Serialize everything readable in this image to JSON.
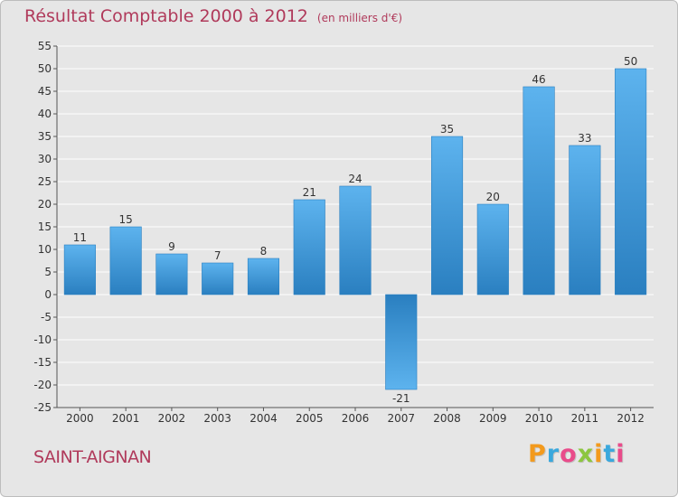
{
  "header": {
    "title": "Résultat Comptable 2000 à 2012",
    "subtitle": "(en milliers d'€)"
  },
  "footer": {
    "commune": "SAINT-AIGNAN",
    "logo_text": "Proxiti"
  },
  "colors": {
    "title": "#b03a5b",
    "bar_top": "#5db3ee",
    "bar_bottom": "#2a7fc0",
    "grid": "#ffffff",
    "background": "#e6e6e6"
  },
  "chart_data": {
    "type": "bar",
    "title": "Résultat Comptable 2000 à 2012",
    "subtitle": "(en milliers d'€)",
    "xlabel": "",
    "ylabel": "",
    "categories": [
      "2000",
      "2001",
      "2002",
      "2003",
      "2004",
      "2005",
      "2006",
      "2007",
      "2008",
      "2009",
      "2010",
      "2011",
      "2012"
    ],
    "values": [
      11,
      15,
      9,
      7,
      8,
      21,
      24,
      -21,
      35,
      20,
      46,
      33,
      50
    ],
    "ylim": [
      -25,
      55
    ],
    "yticks": [
      55,
      50,
      45,
      40,
      35,
      30,
      25,
      20,
      15,
      10,
      5,
      0,
      -5,
      -10,
      -15,
      -20,
      -25
    ],
    "grid": true,
    "data_labels": true
  }
}
